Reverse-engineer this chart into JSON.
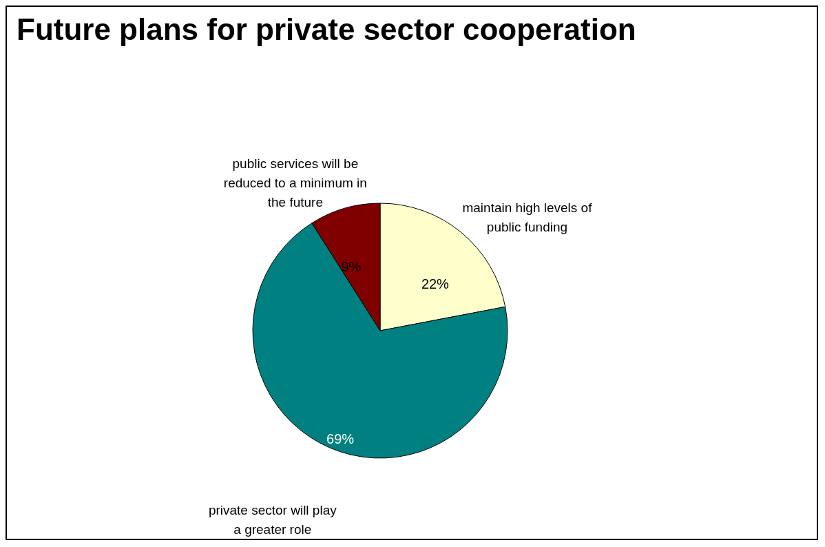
{
  "chart_data": {
    "type": "pie",
    "title": "Future plans for private sector cooperation",
    "categories": [
      "maintain high levels of public funding",
      "private sector will play a greater role",
      "public services will be reduced to a minimum in the future"
    ],
    "values": [
      22,
      69,
      9
    ],
    "value_labels": [
      "22%",
      "69%",
      "9%"
    ],
    "colors": [
      "#ffffcc",
      "#008080",
      "#800000"
    ]
  }
}
